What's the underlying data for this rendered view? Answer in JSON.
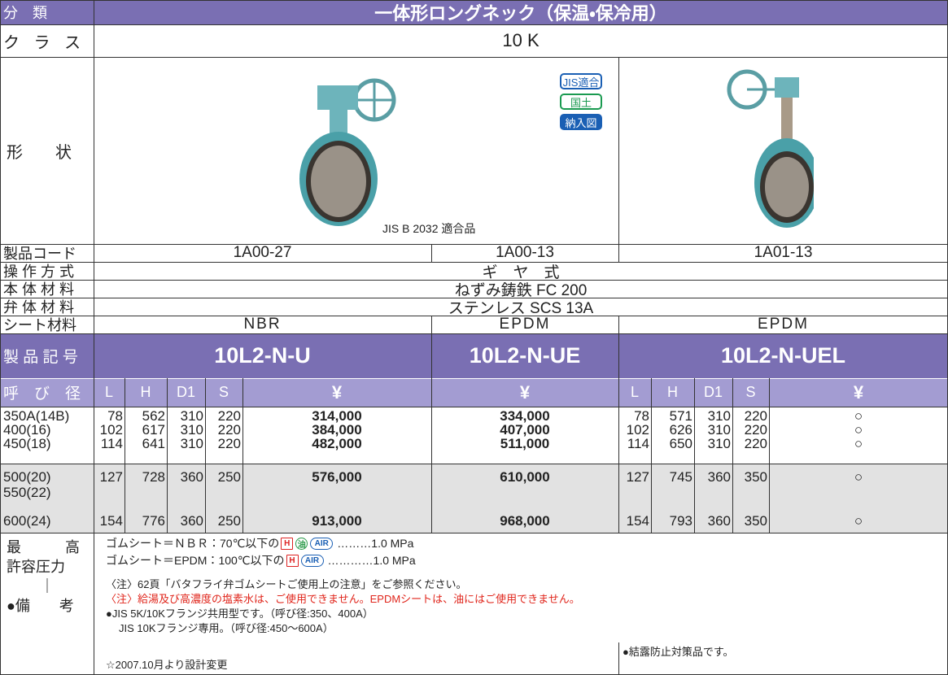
{
  "header": {
    "category_label": "分　類",
    "title": "一体形ロングネック（保温・保冷用）"
  },
  "class": {
    "label": "ク ラ ス",
    "value": "10 K"
  },
  "shape": {
    "label": "形　　状",
    "badges": [
      "JIS適合",
      "国土",
      "納入図"
    ],
    "standard": "JIS B 2032 適合品"
  },
  "product_code": {
    "label": "製品コード",
    "values": [
      "1A00-27",
      "1A00-13",
      "1A01-13"
    ]
  },
  "operation": {
    "label": "操 作 方 式",
    "value": "ギ　ヤ　式"
  },
  "body_material": {
    "label": "本 体 材 料",
    "value": "ねずみ鋳鉄 FC 200"
  },
  "disc_material": {
    "label": "弁 体 材 料",
    "value": "ステンレス SCS 13A"
  },
  "seat_material": {
    "label": "シート材料",
    "values": [
      "NBR",
      "EPDM",
      "EPDM"
    ]
  },
  "model": {
    "label": "製 品 記 号",
    "values": [
      "10L2-N-U",
      "10L2-N-UE",
      "10L2-N-UEL"
    ]
  },
  "table": {
    "size_label": "呼　び　径",
    "columns": [
      "L",
      "H",
      "D1",
      "S",
      "¥",
      "¥",
      "L",
      "H",
      "D1",
      "S",
      "¥"
    ],
    "rows": [
      [
        "350A(14B)",
        78,
        562,
        310,
        220,
        "314,000",
        "334,000",
        78,
        571,
        310,
        220,
        "○"
      ],
      [
        "400(16)",
        102,
        617,
        310,
        220,
        "384,000",
        "407,000",
        102,
        626,
        310,
        220,
        "○"
      ],
      [
        "450(18)",
        114,
        641,
        310,
        220,
        "482,000",
        "511,000",
        114,
        650,
        310,
        220,
        "○"
      ],
      [
        "500(20)",
        127,
        728,
        360,
        250,
        "576,000",
        "610,000",
        127,
        745,
        360,
        350,
        "○"
      ],
      [
        "550(22)",
        null,
        null,
        null,
        null,
        null,
        null,
        null,
        null,
        null,
        null,
        null
      ],
      [
        "600(24)",
        154,
        776,
        360,
        250,
        "913,000",
        "968,000",
        154,
        793,
        360,
        350,
        "○"
      ]
    ]
  },
  "notes": {
    "label": [
      "最　　　高",
      "許容圧力",
      "｜",
      "●備　　考"
    ],
    "pressure": [
      {
        "text": "ゴムシート＝ＮＢＲ：70℃以下の",
        "icons": [
          "H",
          "油",
          "AIR"
        ],
        "value": "………1.0 MPa"
      },
      {
        "text": "ゴムシート＝EPDM：100℃以下の",
        "icons": [
          "H",
          "AIR"
        ],
        "value": "…………1.0 MPa"
      }
    ],
    "caution": "〈注〉62頁「バタフライ弁ゴムシートご使用上の注意」をご参照ください。",
    "warning": "〈注〉給湯及び高濃度の塩素水は、ご使用できません。EPDMシートは、油にはご使用できません。",
    "flange": [
      "●JIS 5K/10Kフランジ共用型です。（呼び径:350、400A）",
      "JIS 10Kフランジ専用。（呼び径:450〜600A）"
    ],
    "change": "☆2007.10月より設計変更",
    "right": "●結露防止対策品です。"
  }
}
